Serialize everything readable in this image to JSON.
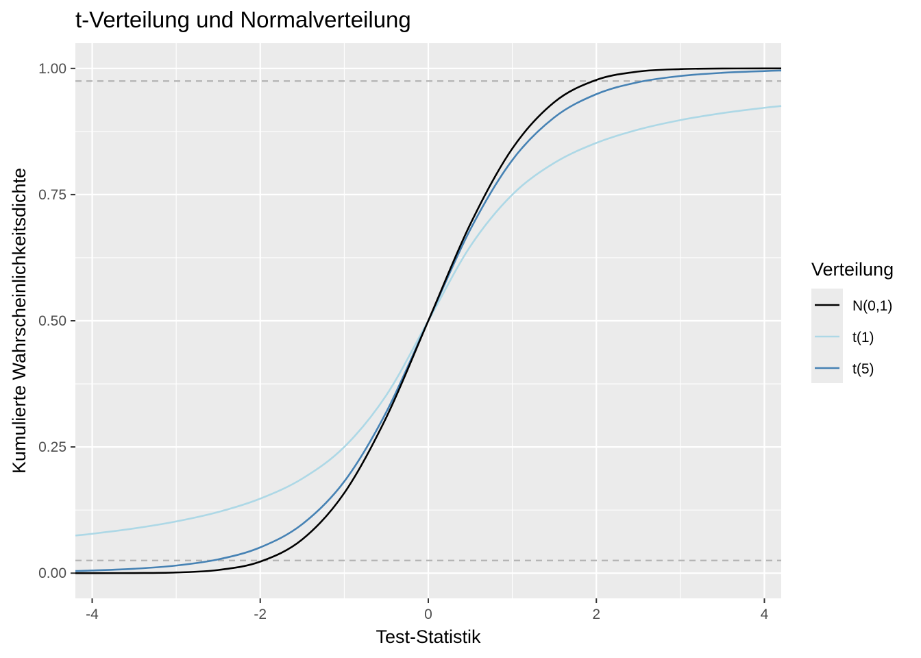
{
  "chart_data": {
    "type": "line",
    "title": "t-Verteilung und Normalverteilung",
    "xlabel": "Test-Statistik",
    "ylabel": "Kumulierte Wahrscheinlichkeitsdichte",
    "xlim": [
      -4.2,
      4.2
    ],
    "ylim": [
      -0.05,
      1.05
    ],
    "x_ticks": [
      {
        "value": -4,
        "label": "-4"
      },
      {
        "value": -2,
        "label": "-2"
      },
      {
        "value": 0,
        "label": "0"
      },
      {
        "value": 2,
        "label": "2"
      },
      {
        "value": 4,
        "label": "4"
      }
    ],
    "y_ticks": [
      {
        "value": 0,
        "label": "0.00"
      },
      {
        "value": 0.25,
        "label": "0.25"
      },
      {
        "value": 0.5,
        "label": "0.50"
      },
      {
        "value": 0.75,
        "label": "0.75"
      },
      {
        "value": 1,
        "label": "1.00"
      }
    ],
    "grid": true,
    "legend": {
      "title": "Verteilung",
      "position": "right"
    },
    "reference_lines": [
      {
        "axis": "y",
        "value": 0.025,
        "style": "dashed",
        "color": "#b3b3b3"
      },
      {
        "axis": "y",
        "value": 0.975,
        "style": "dashed",
        "color": "#b3b3b3"
      }
    ],
    "x": [
      -4.2,
      -4.0,
      -3.5,
      -3.0,
      -2.5,
      -2.0,
      -1.5,
      -1.0,
      -0.5,
      0.0,
      0.5,
      1.0,
      1.5,
      2.0,
      2.5,
      3.0,
      3.5,
      4.0,
      4.2
    ],
    "series": [
      {
        "name": "N(0,1)",
        "color": "#000000",
        "values": [
          0.0,
          0.0,
          0.0002,
          0.0013,
          0.0062,
          0.0228,
          0.0668,
          0.1587,
          0.3085,
          0.5,
          0.6915,
          0.8413,
          0.9332,
          0.9772,
          0.9938,
          0.9987,
          0.9998,
          1.0,
          1.0
        ]
      },
      {
        "name": "t(1)",
        "color": "#add8e6",
        "values": [
          0.0745,
          0.078,
          0.0886,
          0.1024,
          0.1211,
          0.1476,
          0.1872,
          0.25,
          0.3524,
          0.5,
          0.6476,
          0.75,
          0.8128,
          0.8524,
          0.8789,
          0.8976,
          0.9114,
          0.922,
          0.9255
        ]
      },
      {
        "name": "t(5)",
        "color": "#4682b4",
        "values": [
          0.0042,
          0.0052,
          0.0087,
          0.015,
          0.0272,
          0.051,
          0.097,
          0.1816,
          0.3191,
          0.5,
          0.6809,
          0.8184,
          0.903,
          0.949,
          0.9728,
          0.985,
          0.9913,
          0.9948,
          0.9958
        ]
      }
    ]
  }
}
